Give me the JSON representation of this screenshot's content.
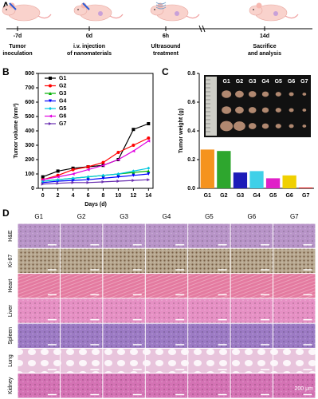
{
  "panel_labels": [
    "A",
    "B",
    "C",
    "D"
  ],
  "timeline": {
    "times": [
      "-7d",
      "0d",
      "6h",
      "14d"
    ],
    "events": [
      [
        "Tumor",
        "inoculation"
      ],
      [
        "i.v. injection",
        "of nanomaterials"
      ],
      [
        "Ultrasound",
        "treatment"
      ],
      [
        "Sacrifice",
        "and analysis"
      ]
    ]
  },
  "chart_data": [
    {
      "type": "line",
      "x_label": "Days (d)",
      "y_label": "Tumor volume (mm³)",
      "x": [
        0,
        2,
        4,
        6,
        8,
        10,
        12,
        14
      ],
      "xlim": [
        -0.6,
        14.6
      ],
      "xticks": [
        0,
        2,
        4,
        6,
        8,
        10,
        12,
        14
      ],
      "ylim": [
        0,
        800
      ],
      "yticks": [
        0,
        100,
        200,
        300,
        400,
        500,
        600,
        700,
        800
      ],
      "series": [
        {
          "name": "G1",
          "color": "#000000",
          "marker": "square",
          "values": [
            80,
            120,
            140,
            150,
            160,
            200,
            410,
            450
          ]
        },
        {
          "name": "G2",
          "color": "#ff0000",
          "marker": "circle",
          "values": [
            60,
            90,
            130,
            150,
            180,
            250,
            300,
            350
          ]
        },
        {
          "name": "G3",
          "color": "#00b000",
          "marker": "triangle",
          "values": [
            50,
            60,
            70,
            80,
            90,
            100,
            110,
            120
          ]
        },
        {
          "name": "G4",
          "color": "#0000ff",
          "marker": "triangle-down",
          "values": [
            40,
            50,
            55,
            60,
            70,
            80,
            90,
            100
          ]
        },
        {
          "name": "G5",
          "color": "#00c8e0",
          "marker": "diamond",
          "values": [
            50,
            60,
            70,
            80,
            90,
            100,
            120,
            140
          ]
        },
        {
          "name": "G6",
          "color": "#e000e0",
          "marker": "triangle-left",
          "values": [
            60,
            80,
            100,
            130,
            160,
            200,
            260,
            330
          ]
        },
        {
          "name": "G7",
          "color": "#6a2fb0",
          "marker": "triangle-right",
          "values": [
            30,
            35,
            40,
            40,
            45,
            50,
            55,
            60
          ]
        }
      ],
      "legend": "top-left"
    },
    {
      "type": "bar",
      "y_label": "Tumor weight (g)",
      "categories": [
        "G1",
        "G2",
        "G3",
        "G4",
        "G5",
        "G6",
        "G7"
      ],
      "values": [
        0.27,
        0.26,
        0.11,
        0.12,
        0.07,
        0.09,
        0.005
      ],
      "colors": [
        "#f5931e",
        "#2ea62e",
        "#1c1cb8",
        "#3fd0e8",
        "#e020c8",
        "#f0d000",
        "#e00000"
      ],
      "ylim": [
        0,
        0.8
      ],
      "yticks": [
        {
          "value": 0,
          "label": "0.0"
        },
        0.2,
        0.4,
        0.6,
        0.8
      ]
    }
  ],
  "histology": {
    "columns": [
      "G1",
      "G2",
      "G3",
      "G4",
      "G5",
      "G6",
      "G7"
    ],
    "rows": [
      "H&E",
      "Ki-67",
      "Heart",
      "Liver",
      "Spleen",
      "Lung",
      "Kidney"
    ],
    "scale_bar": "200 μm"
  }
}
